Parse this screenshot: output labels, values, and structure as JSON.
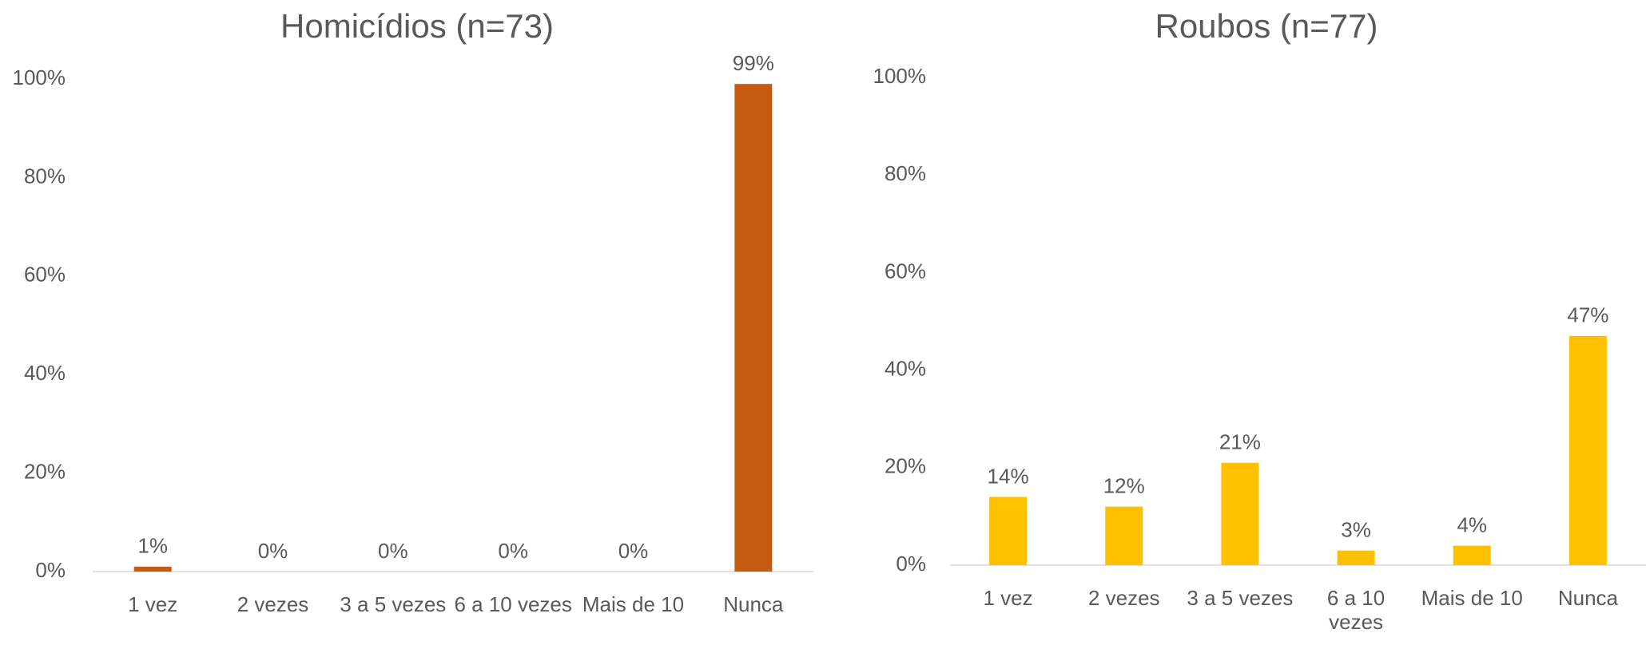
{
  "chart_data": [
    {
      "type": "bar",
      "title": "Homicídios (n=73)",
      "categories": [
        "1 vez",
        "2 vezes",
        "3 a 5 vezes",
        "6 a 10 vezes",
        "Mais de 10",
        "Nunca"
      ],
      "values": [
        1,
        0,
        0,
        0,
        0,
        99
      ],
      "value_labels": [
        "1%",
        "0%",
        "0%",
        "0%",
        "0%",
        "99%"
      ],
      "color": "#c55a11",
      "ylim": [
        0,
        100
      ],
      "yticks": [
        {
          "value": 0,
          "label": "0%"
        },
        {
          "value": 20,
          "label": "20%"
        },
        {
          "value": 40,
          "label": "40%"
        },
        {
          "value": 60,
          "label": "60%"
        },
        {
          "value": 80,
          "label": "80%"
        },
        {
          "value": 100,
          "label": "100%"
        }
      ],
      "grid": false
    },
    {
      "type": "bar",
      "title": "Roubos (n=77)",
      "categories": [
        "1 vez",
        "2 vezes",
        "3 a 5 vezes",
        "6 a 10 vezes",
        "Mais de 10",
        "Nunca"
      ],
      "values": [
        14,
        12,
        21,
        3,
        4,
        47
      ],
      "value_labels": [
        "14%",
        "12%",
        "21%",
        "3%",
        "4%",
        "47%"
      ],
      "color": "#ffc000",
      "ylim": [
        0,
        100
      ],
      "yticks": [
        {
          "value": 0,
          "label": "0%"
        },
        {
          "value": 20,
          "label": "20%"
        },
        {
          "value": 40,
          "label": "40%"
        },
        {
          "value": 60,
          "label": "60%"
        },
        {
          "value": 80,
          "label": "80%"
        },
        {
          "value": 100,
          "label": "100%"
        }
      ],
      "grid": false
    }
  ]
}
